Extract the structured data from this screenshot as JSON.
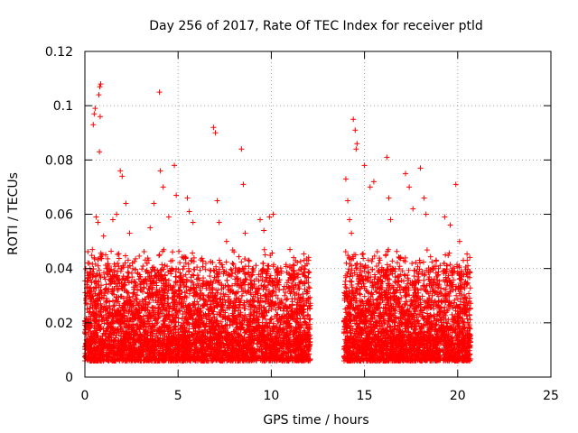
{
  "chart_data": {
    "type": "scatter",
    "title": "Day 256 of 2017, Rate Of TEC Index for receiver ptld",
    "xlabel": "GPS time / hours",
    "ylabel": "ROTI / TECUs",
    "xlim": [
      0,
      25
    ],
    "ylim": [
      0,
      0.12
    ],
    "xticks": [
      0,
      5,
      10,
      15,
      20,
      25
    ],
    "xtick_labels": [
      "0",
      "5",
      "10",
      "15",
      "20",
      "25"
    ],
    "yticks": [
      0,
      0.02,
      0.04,
      0.06,
      0.08,
      0.1,
      0.12
    ],
    "ytick_labels": [
      "0",
      "0.02",
      "0.04",
      "0.06",
      "0.08",
      "0.1",
      "0.12"
    ],
    "grid": true,
    "marker": "plus",
    "color": "#ff0000",
    "data_coverage_hours": [
      [
        0,
        12.1
      ],
      [
        13.9,
        20.7
      ]
    ],
    "series": [
      {
        "points": [
          [
            0.1,
            0.012
          ],
          [
            0.2,
            0.018
          ],
          [
            0.3,
            0.033
          ],
          [
            0.4,
            0.047
          ],
          [
            0.45,
            0.093
          ],
          [
            0.5,
            0.097
          ],
          [
            0.55,
            0.099
          ],
          [
            0.6,
            0.059
          ],
          [
            0.7,
            0.057
          ],
          [
            0.75,
            0.104
          ],
          [
            0.8,
            0.107
          ],
          [
            0.85,
            0.108
          ],
          [
            0.82,
            0.096
          ],
          [
            0.78,
            0.083
          ],
          [
            0.9,
            0.045
          ],
          [
            1.0,
            0.052
          ],
          [
            1.2,
            0.038
          ],
          [
            1.5,
            0.058
          ],
          [
            1.7,
            0.06
          ],
          [
            1.9,
            0.076
          ],
          [
            2.0,
            0.074
          ],
          [
            2.2,
            0.064
          ],
          [
            2.4,
            0.053
          ],
          [
            3.5,
            0.055
          ],
          [
            3.7,
            0.064
          ],
          [
            4.0,
            0.105
          ],
          [
            4.05,
            0.076
          ],
          [
            4.2,
            0.07
          ],
          [
            4.5,
            0.059
          ],
          [
            4.8,
            0.078
          ],
          [
            4.9,
            0.067
          ],
          [
            5.5,
            0.066
          ],
          [
            5.6,
            0.061
          ],
          [
            5.8,
            0.057
          ],
          [
            6.9,
            0.092
          ],
          [
            7.0,
            0.09
          ],
          [
            7.1,
            0.065
          ],
          [
            7.2,
            0.057
          ],
          [
            7.6,
            0.05
          ],
          [
            8.4,
            0.084
          ],
          [
            8.5,
            0.071
          ],
          [
            8.6,
            0.053
          ],
          [
            9.4,
            0.058
          ],
          [
            9.6,
            0.054
          ],
          [
            9.9,
            0.059
          ],
          [
            10.1,
            0.06
          ],
          [
            11.0,
            0.047
          ],
          [
            11.2,
            0.044
          ],
          [
            12.0,
            0.043
          ],
          [
            14.0,
            0.073
          ],
          [
            14.1,
            0.065
          ],
          [
            14.2,
            0.058
          ],
          [
            14.3,
            0.053
          ],
          [
            14.4,
            0.095
          ],
          [
            14.5,
            0.091
          ],
          [
            14.55,
            0.084
          ],
          [
            14.6,
            0.086
          ],
          [
            15.0,
            0.078
          ],
          [
            15.3,
            0.07
          ],
          [
            15.5,
            0.072
          ],
          [
            16.2,
            0.081
          ],
          [
            16.3,
            0.066
          ],
          [
            16.4,
            0.058
          ],
          [
            17.2,
            0.075
          ],
          [
            17.4,
            0.07
          ],
          [
            17.6,
            0.062
          ],
          [
            18.0,
            0.077
          ],
          [
            18.2,
            0.066
          ],
          [
            18.3,
            0.06
          ],
          [
            19.3,
            0.059
          ],
          [
            19.6,
            0.056
          ],
          [
            19.9,
            0.071
          ],
          [
            20.1,
            0.05
          ],
          [
            20.3,
            0.043
          ],
          [
            20.5,
            0.034
          ]
        ],
        "dense_band": {
          "description_free": true,
          "y_low": 0.004,
          "y_high": 0.04
        }
      }
    ]
  }
}
